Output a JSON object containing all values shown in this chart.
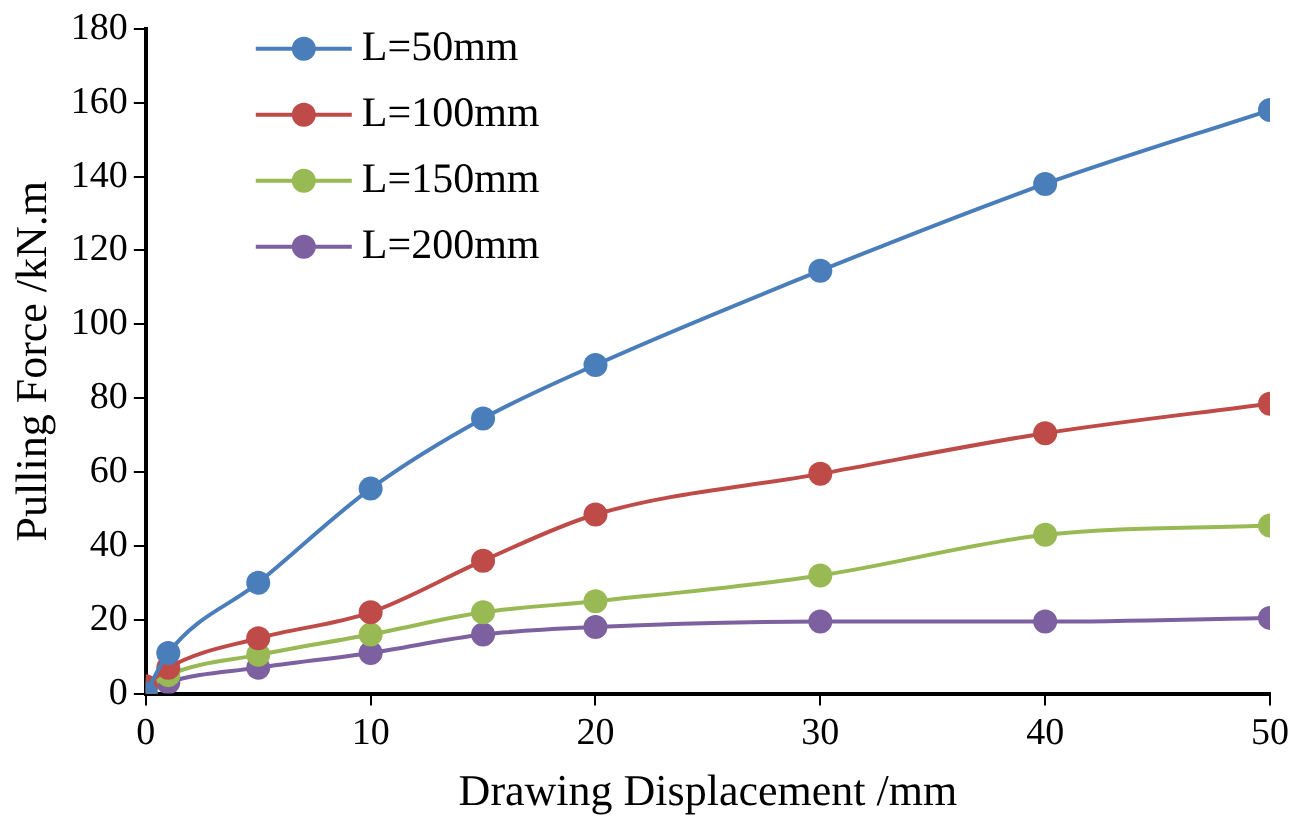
{
  "chart_data": {
    "type": "line",
    "xlabel": "Drawing Displacement /mm",
    "ylabel": "Pulling Force /kN.m",
    "x": [
      0,
      1,
      5,
      10,
      15,
      20,
      30,
      40,
      50
    ],
    "series": [
      {
        "name": "L=50mm",
        "color": "#4a7ebb",
        "values": [
          0,
          11,
          30,
          55.5,
          74.5,
          89,
          114.5,
          138,
          158
        ]
      },
      {
        "name": "L=100mm",
        "color": "#be4b48",
        "values": [
          2,
          7,
          15,
          22,
          36,
          48.5,
          59.5,
          70.5,
          78.5
        ]
      },
      {
        "name": "L=150mm",
        "color": "#98b954",
        "values": [
          1,
          5,
          10.5,
          16,
          22,
          25,
          32,
          43,
          45.5
        ]
      },
      {
        "name": "L=200mm",
        "color": "#7d60a0",
        "values": [
          0,
          3,
          7,
          11,
          16,
          18,
          19.5,
          19.5,
          20.5
        ]
      }
    ],
    "xlim": [
      0,
      50
    ],
    "xticks": [
      0,
      10,
      20,
      30,
      40,
      50
    ],
    "ylim": [
      0,
      180
    ],
    "yticks": [
      0,
      20,
      40,
      60,
      80,
      100,
      120,
      140,
      160,
      180
    ],
    "grid": false,
    "legend": "top left",
    "marker": "circle",
    "line_style": "solid"
  }
}
